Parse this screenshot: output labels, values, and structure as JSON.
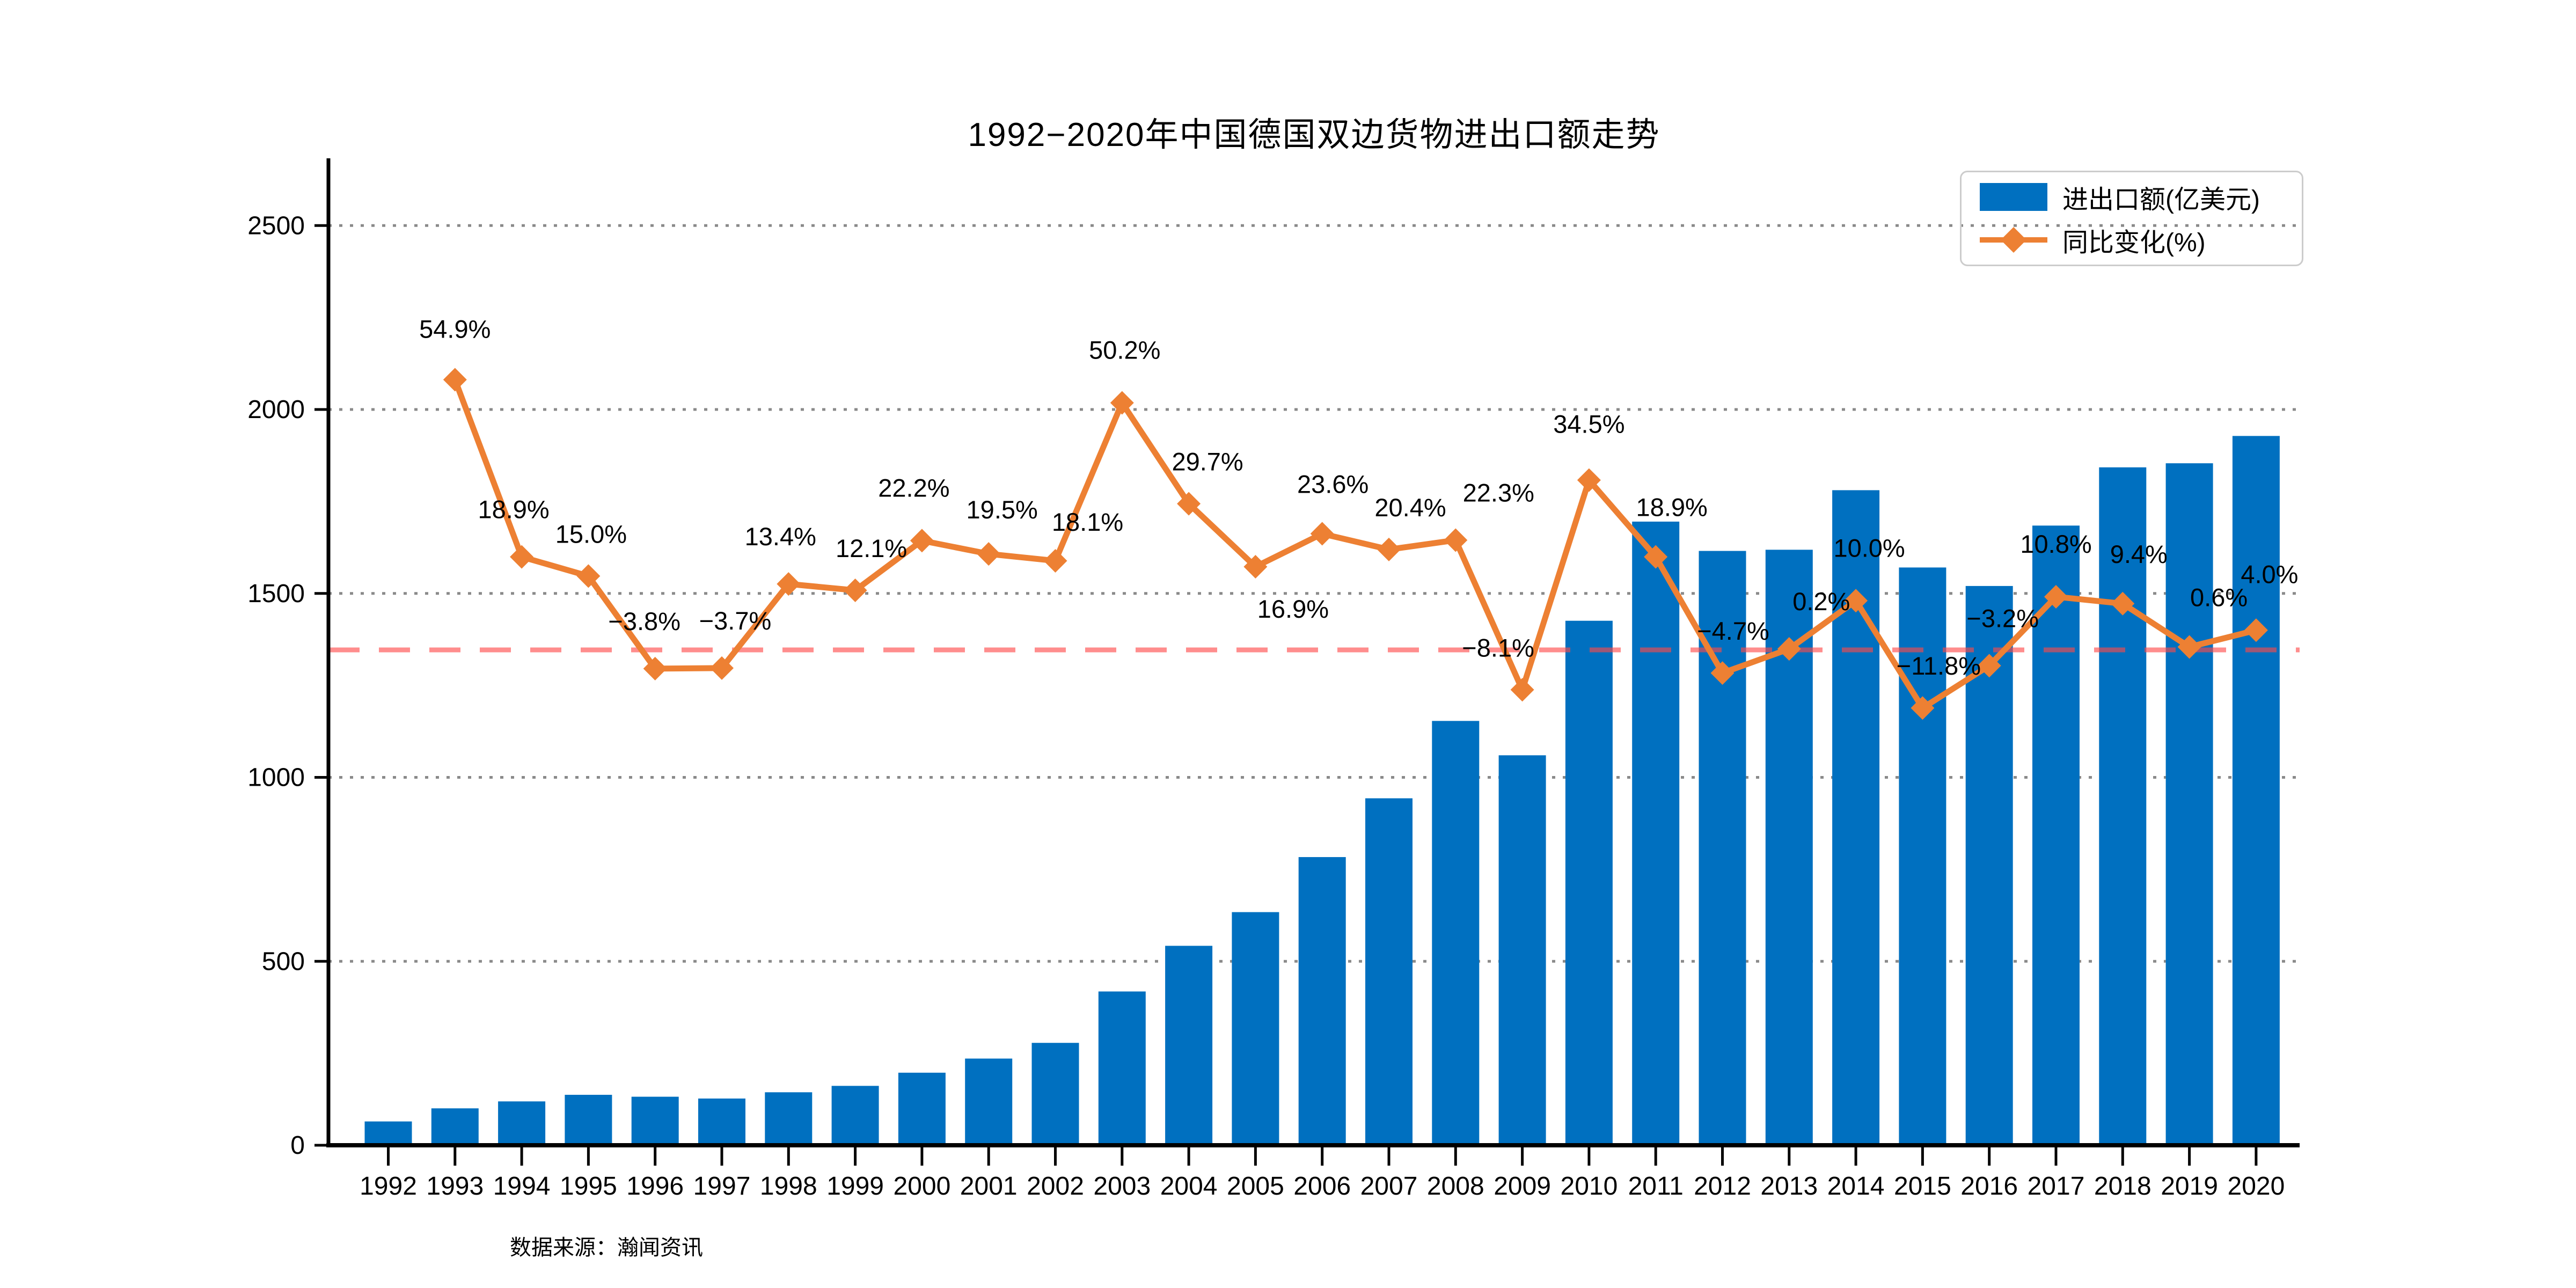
{
  "chart_data": {
    "type": "bar+line",
    "title": "1992−2020年中国德国双边货物进出口额走势",
    "source_note": "数据来源：瀚闻资讯",
    "categories": [
      "1992",
      "1993",
      "1994",
      "1995",
      "1996",
      "1997",
      "1998",
      "1999",
      "2000",
      "2001",
      "2002",
      "2003",
      "2004",
      "2005",
      "2006",
      "2007",
      "2008",
      "2009",
      "2010",
      "2011",
      "2012",
      "2013",
      "2014",
      "2015",
      "2016",
      "2017",
      "2018",
      "2019",
      "2020"
    ],
    "series": [
      {
        "name": "进出口额(亿美元)",
        "type": "bar",
        "color": "#0070C0",
        "values": [
          64.7,
          100.3,
          119.2,
          137.1,
          131.9,
          127.0,
          144.0,
          161.4,
          197.2,
          235.6,
          278.3,
          418.0,
          542.1,
          633.7,
          783.3,
          943.1,
          1153.4,
          1060.0,
          1425.7,
          1695.2,
          1615.5,
          1618.7,
          1780.6,
          1570.5,
          1520.2,
          1684.4,
          1842.7,
          1853.8,
          1928.0
        ]
      },
      {
        "name": "同比变化(%)",
        "type": "line",
        "color": "#ED8033",
        "marker": "diamond",
        "values": [
          null,
          54.9,
          18.9,
          15.0,
          -3.8,
          -3.7,
          13.4,
          12.1,
          22.2,
          19.5,
          18.1,
          50.2,
          29.7,
          16.9,
          23.6,
          20.4,
          22.3,
          -8.1,
          34.5,
          18.9,
          -4.7,
          0.2,
          10.0,
          -11.8,
          -3.2,
          10.8,
          9.4,
          0.6,
          4.0
        ],
        "point_labels": [
          "",
          "54.9%",
          "18.9%",
          "15.0%",
          "−3.8%",
          "−3.7%",
          "13.4%",
          "12.1%",
          "22.2%",
          "19.5%",
          "18.1%",
          "50.2%",
          "29.7%",
          "16.9%",
          "23.6%",
          "20.4%",
          "22.3%",
          "−8.1%",
          "34.5%",
          "18.9%",
          "−4.7%",
          "0.2%",
          "10.0%",
          "−11.8%",
          "−3.2%",
          "10.8%",
          "9.4%",
          "0.6%",
          "4.0%"
        ]
      }
    ],
    "y_left": {
      "ticks": [
        "0",
        "500",
        "1000",
        "1500",
        "2000",
        "2500"
      ],
      "tick_values": [
        0,
        500,
        1000,
        1500,
        2000,
        2500
      ],
      "max": 2675,
      "gridlines": "dotted"
    },
    "y_right": {
      "axis_labels_visible": false,
      "zero_reference_line": {
        "value": 0,
        "style": "dashed",
        "color": "#FF4848"
      }
    },
    "legend": {
      "position": "top-right",
      "entries": [
        "进出口额(亿美元)",
        "同比变化(%)"
      ]
    }
  },
  "colors": {
    "bar": "#0070C0",
    "line": "#ED8033",
    "zero_line": "#FF4848",
    "gridline": "#8a8a8a",
    "axis": "#000000"
  }
}
